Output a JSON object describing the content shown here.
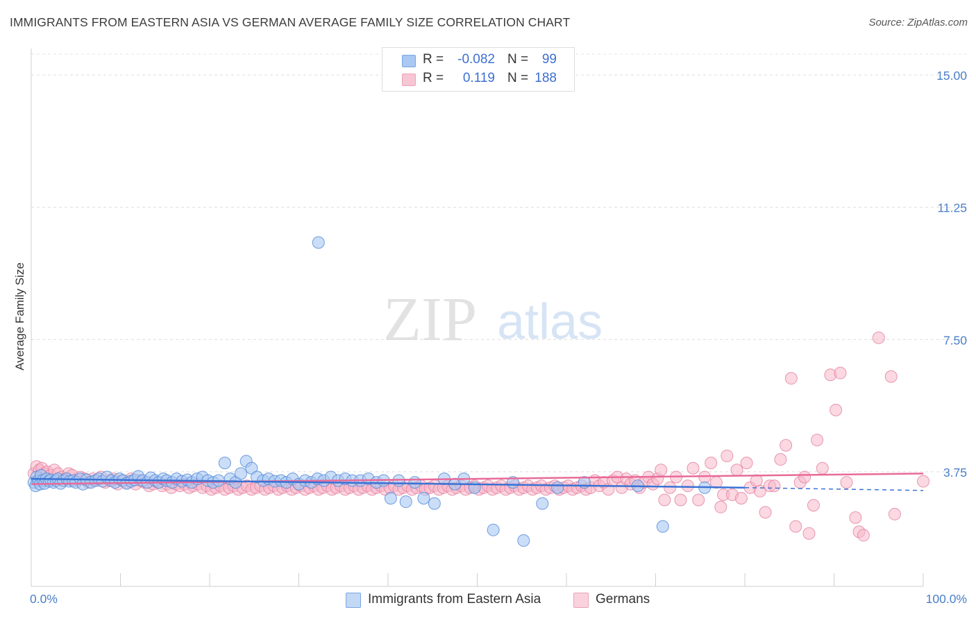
{
  "title": "IMMIGRANTS FROM EASTERN ASIA VS GERMAN AVERAGE FAMILY SIZE CORRELATION CHART",
  "source": "Source: ZipAtlas.com",
  "watermark": {
    "zip": "ZIP",
    "atlas": "atlas"
  },
  "legend": {
    "rows": [
      {
        "r_label": "R =",
        "r_value": "-0.082",
        "n_label": "N =",
        "n_value": "99",
        "color": "#a9c8f2"
      },
      {
        "r_label": "R =",
        "r_value": "0.119",
        "n_label": "N =",
        "n_value": "188",
        "color": "#f7b8cb"
      }
    ]
  },
  "bottom_legend": [
    "Immigrants from Eastern Asia",
    "Germans"
  ],
  "chart_data": {
    "type": "scatter",
    "title": "IMMIGRANTS FROM EASTERN ASIA VS GERMAN AVERAGE FAMILY SIZE CORRELATION CHART",
    "xlabel": "",
    "ylabel": "Average Family Size",
    "xlim": [
      0,
      100
    ],
    "ylim": [
      0.5,
      15.75
    ],
    "x_tick_labels": [
      "0.0%",
      "100.0%"
    ],
    "y_ticks": [
      3.75,
      7.5,
      11.25,
      15.0
    ],
    "y_tick_labels": [
      "3.75",
      "7.50",
      "11.25",
      "15.00"
    ],
    "grid": true,
    "legend_position": "top-center",
    "colors": {
      "blue_fill": "#a9c8f2",
      "blue_stroke": "#4f86d8",
      "blue_line": "#3a72d4",
      "pink_fill": "#f7b8cb",
      "pink_stroke": "#e07898",
      "pink_line": "#e86a98"
    },
    "series": [
      {
        "name": "Immigrants from Eastern Asia",
        "trend": {
          "x0": 0,
          "y0": 3.55,
          "x1": 80,
          "y1": 3.3,
          "dashed_to_x": 100,
          "dashed_to_y": 3.22
        },
        "points": [
          [
            0.3,
            3.45
          ],
          [
            0.5,
            3.35
          ],
          [
            0.6,
            3.6
          ],
          [
            0.8,
            3.5
          ],
          [
            1.0,
            3.4
          ],
          [
            1.1,
            3.65
          ],
          [
            1.3,
            3.5
          ],
          [
            1.5,
            3.42
          ],
          [
            1.7,
            3.55
          ],
          [
            2.0,
            3.48
          ],
          [
            2.2,
            3.52
          ],
          [
            2.5,
            3.45
          ],
          [
            2.8,
            3.5
          ],
          [
            3.0,
            3.55
          ],
          [
            3.3,
            3.42
          ],
          [
            3.6,
            3.5
          ],
          [
            4.0,
            3.55
          ],
          [
            4.3,
            3.48
          ],
          [
            4.7,
            3.5
          ],
          [
            5.0,
            3.45
          ],
          [
            5.5,
            3.55
          ],
          [
            5.8,
            3.4
          ],
          [
            6.2,
            3.52
          ],
          [
            6.7,
            3.45
          ],
          [
            7.2,
            3.5
          ],
          [
            7.6,
            3.55
          ],
          [
            8.0,
            3.48
          ],
          [
            8.5,
            3.6
          ],
          [
            9.0,
            3.5
          ],
          [
            9.4,
            3.45
          ],
          [
            9.9,
            3.55
          ],
          [
            10.3,
            3.5
          ],
          [
            10.7,
            3.42
          ],
          [
            11.2,
            3.48
          ],
          [
            11.6,
            3.52
          ],
          [
            12.0,
            3.62
          ],
          [
            12.5,
            3.5
          ],
          [
            13.0,
            3.45
          ],
          [
            13.4,
            3.58
          ],
          [
            13.9,
            3.5
          ],
          [
            14.3,
            3.45
          ],
          [
            14.8,
            3.55
          ],
          [
            15.2,
            3.5
          ],
          [
            15.8,
            3.45
          ],
          [
            16.3,
            3.55
          ],
          [
            16.9,
            3.48
          ],
          [
            17.5,
            3.52
          ],
          [
            18.0,
            3.45
          ],
          [
            18.6,
            3.55
          ],
          [
            19.2,
            3.6
          ],
          [
            19.8,
            3.5
          ],
          [
            20.4,
            3.45
          ],
          [
            21.0,
            3.5
          ],
          [
            21.7,
            4.0
          ],
          [
            22.3,
            3.55
          ],
          [
            22.9,
            3.45
          ],
          [
            23.5,
            3.7
          ],
          [
            24.1,
            4.05
          ],
          [
            24.7,
            3.85
          ],
          [
            25.3,
            3.6
          ],
          [
            26.0,
            3.5
          ],
          [
            26.6,
            3.55
          ],
          [
            27.3,
            3.48
          ],
          [
            28.0,
            3.5
          ],
          [
            28.6,
            3.45
          ],
          [
            29.3,
            3.55
          ],
          [
            30.0,
            3.4
          ],
          [
            30.7,
            3.5
          ],
          [
            31.4,
            3.45
          ],
          [
            32.1,
            3.55
          ],
          [
            32.8,
            3.5
          ],
          [
            33.6,
            3.6
          ],
          [
            34.4,
            3.5
          ],
          [
            35.2,
            3.55
          ],
          [
            36.0,
            3.5
          ],
          [
            36.9,
            3.5
          ],
          [
            37.8,
            3.55
          ],
          [
            38.7,
            3.45
          ],
          [
            39.5,
            3.5
          ],
          [
            40.3,
            3.0
          ],
          [
            41.2,
            3.5
          ],
          [
            42.0,
            2.9
          ],
          [
            43.0,
            3.45
          ],
          [
            44.0,
            3.0
          ],
          [
            45.2,
            2.85
          ],
          [
            46.3,
            3.55
          ],
          [
            47.5,
            3.4
          ],
          [
            48.5,
            3.55
          ],
          [
            49.7,
            3.3
          ],
          [
            51.8,
            2.1
          ],
          [
            54.0,
            3.45
          ],
          [
            55.2,
            1.8
          ],
          [
            57.3,
            2.85
          ],
          [
            59.0,
            3.3
          ],
          [
            62.0,
            3.45
          ],
          [
            68.0,
            3.35
          ],
          [
            75.5,
            3.3
          ],
          [
            70.8,
            2.2
          ],
          [
            32.2,
            10.25
          ]
        ]
      },
      {
        "name": "Germans",
        "trend": {
          "x0": 0,
          "y0": 3.4,
          "x1": 100,
          "y1": 3.7
        },
        "points": [
          [
            0.3,
            3.7
          ],
          [
            0.6,
            3.9
          ],
          [
            0.9,
            3.8
          ],
          [
            1.2,
            3.85
          ],
          [
            1.5,
            3.7
          ],
          [
            1.8,
            3.75
          ],
          [
            2.2,
            3.65
          ],
          [
            2.6,
            3.8
          ],
          [
            3.0,
            3.7
          ],
          [
            3.4,
            3.6
          ],
          [
            3.8,
            3.55
          ],
          [
            4.2,
            3.7
          ],
          [
            4.6,
            3.65
          ],
          [
            5.0,
            3.5
          ],
          [
            5.5,
            3.6
          ],
          [
            6.0,
            3.55
          ],
          [
            6.4,
            3.45
          ],
          [
            6.9,
            3.55
          ],
          [
            7.3,
            3.5
          ],
          [
            7.8,
            3.6
          ],
          [
            8.3,
            3.45
          ],
          [
            8.8,
            3.5
          ],
          [
            9.2,
            3.55
          ],
          [
            9.7,
            3.4
          ],
          [
            10.2,
            3.5
          ],
          [
            10.7,
            3.45
          ],
          [
            11.2,
            3.55
          ],
          [
            11.7,
            3.4
          ],
          [
            12.2,
            3.5
          ],
          [
            12.7,
            3.45
          ],
          [
            13.2,
            3.35
          ],
          [
            13.7,
            3.4
          ],
          [
            14.2,
            3.45
          ],
          [
            14.7,
            3.35
          ],
          [
            15.2,
            3.4
          ],
          [
            15.7,
            3.3
          ],
          [
            16.2,
            3.4
          ],
          [
            16.7,
            3.35
          ],
          [
            17.2,
            3.4
          ],
          [
            17.7,
            3.3
          ],
          [
            18.2,
            3.35
          ],
          [
            18.7,
            3.4
          ],
          [
            19.2,
            3.3
          ],
          [
            19.7,
            3.35
          ],
          [
            20.2,
            3.25
          ],
          [
            20.7,
            3.3
          ],
          [
            21.2,
            3.35
          ],
          [
            21.7,
            3.25
          ],
          [
            22.2,
            3.3
          ],
          [
            22.7,
            3.35
          ],
          [
            23.2,
            3.25
          ],
          [
            23.7,
            3.3
          ],
          [
            24.2,
            3.35
          ],
          [
            24.7,
            3.25
          ],
          [
            25.2,
            3.3
          ],
          [
            25.7,
            3.35
          ],
          [
            26.2,
            3.25
          ],
          [
            26.7,
            3.3
          ],
          [
            27.2,
            3.35
          ],
          [
            27.7,
            3.25
          ],
          [
            28.2,
            3.3
          ],
          [
            28.7,
            3.35
          ],
          [
            29.2,
            3.25
          ],
          [
            29.7,
            3.3
          ],
          [
            30.2,
            3.35
          ],
          [
            30.7,
            3.25
          ],
          [
            31.2,
            3.3
          ],
          [
            31.7,
            3.35
          ],
          [
            32.2,
            3.25
          ],
          [
            32.7,
            3.3
          ],
          [
            33.2,
            3.35
          ],
          [
            33.7,
            3.25
          ],
          [
            34.2,
            3.3
          ],
          [
            34.7,
            3.35
          ],
          [
            35.2,
            3.25
          ],
          [
            35.7,
            3.3
          ],
          [
            36.2,
            3.35
          ],
          [
            36.7,
            3.25
          ],
          [
            37.2,
            3.3
          ],
          [
            37.7,
            3.35
          ],
          [
            38.2,
            3.25
          ],
          [
            38.7,
            3.3
          ],
          [
            39.2,
            3.35
          ],
          [
            39.7,
            3.25
          ],
          [
            40.2,
            3.3
          ],
          [
            40.7,
            3.35
          ],
          [
            41.2,
            3.25
          ],
          [
            41.7,
            3.3
          ],
          [
            42.2,
            3.35
          ],
          [
            42.7,
            3.25
          ],
          [
            43.2,
            3.3
          ],
          [
            43.7,
            3.35
          ],
          [
            44.2,
            3.25
          ],
          [
            44.7,
            3.3
          ],
          [
            45.2,
            3.35
          ],
          [
            45.7,
            3.25
          ],
          [
            46.2,
            3.3
          ],
          [
            46.7,
            3.35
          ],
          [
            47.2,
            3.25
          ],
          [
            47.7,
            3.3
          ],
          [
            48.2,
            3.35
          ],
          [
            48.7,
            3.25
          ],
          [
            49.2,
            3.3
          ],
          [
            49.7,
            3.35
          ],
          [
            50.2,
            3.25
          ],
          [
            50.7,
            3.3
          ],
          [
            51.2,
            3.35
          ],
          [
            51.7,
            3.25
          ],
          [
            52.2,
            3.3
          ],
          [
            52.7,
            3.35
          ],
          [
            53.2,
            3.25
          ],
          [
            53.7,
            3.3
          ],
          [
            54.2,
            3.35
          ],
          [
            54.7,
            3.25
          ],
          [
            55.2,
            3.3
          ],
          [
            55.7,
            3.35
          ],
          [
            56.2,
            3.25
          ],
          [
            56.7,
            3.3
          ],
          [
            57.2,
            3.35
          ],
          [
            57.7,
            3.25
          ],
          [
            58.2,
            3.3
          ],
          [
            58.7,
            3.35
          ],
          [
            59.2,
            3.25
          ],
          [
            59.7,
            3.3
          ],
          [
            60.2,
            3.35
          ],
          [
            60.7,
            3.25
          ],
          [
            61.2,
            3.3
          ],
          [
            61.7,
            3.35
          ],
          [
            62.2,
            3.25
          ],
          [
            62.7,
            3.3
          ],
          [
            63.2,
            3.5
          ],
          [
            63.7,
            3.35
          ],
          [
            64.2,
            3.45
          ],
          [
            64.7,
            3.25
          ],
          [
            65.2,
            3.5
          ],
          [
            65.7,
            3.6
          ],
          [
            66.2,
            3.3
          ],
          [
            66.7,
            3.55
          ],
          [
            67.2,
            3.4
          ],
          [
            67.7,
            3.5
          ],
          [
            68.2,
            3.3
          ],
          [
            68.7,
            3.45
          ],
          [
            69.2,
            3.6
          ],
          [
            69.7,
            3.4
          ],
          [
            70.2,
            3.55
          ],
          [
            70.6,
            3.8
          ],
          [
            71.0,
            2.95
          ],
          [
            71.6,
            3.3
          ],
          [
            72.3,
            3.6
          ],
          [
            72.8,
            2.95
          ],
          [
            73.6,
            3.35
          ],
          [
            74.2,
            3.85
          ],
          [
            74.8,
            2.95
          ],
          [
            75.5,
            3.6
          ],
          [
            76.2,
            4.0
          ],
          [
            76.8,
            3.45
          ],
          [
            77.3,
            2.75
          ],
          [
            77.6,
            3.1
          ],
          [
            78.0,
            4.2
          ],
          [
            78.6,
            3.1
          ],
          [
            79.1,
            3.8
          ],
          [
            79.6,
            3.0
          ],
          [
            80.2,
            4.0
          ],
          [
            80.6,
            3.3
          ],
          [
            81.3,
            3.5
          ],
          [
            81.7,
            3.2
          ],
          [
            82.3,
            2.6
          ],
          [
            82.8,
            3.35
          ],
          [
            83.3,
            3.35
          ],
          [
            84.0,
            4.1
          ],
          [
            84.6,
            4.5
          ],
          [
            85.2,
            6.4
          ],
          [
            85.7,
            2.2
          ],
          [
            86.2,
            3.45
          ],
          [
            86.7,
            3.6
          ],
          [
            87.2,
            2.0
          ],
          [
            87.7,
            2.8
          ],
          [
            88.1,
            4.65
          ],
          [
            88.7,
            3.85
          ],
          [
            89.6,
            6.5
          ],
          [
            90.2,
            5.5
          ],
          [
            90.7,
            6.55
          ],
          [
            91.4,
            3.45
          ],
          [
            92.4,
            2.45
          ],
          [
            92.8,
            2.05
          ],
          [
            93.3,
            1.95
          ],
          [
            95.0,
            7.55
          ],
          [
            96.4,
            6.45
          ],
          [
            96.8,
            2.55
          ],
          [
            100.0,
            3.48
          ]
        ]
      }
    ]
  }
}
